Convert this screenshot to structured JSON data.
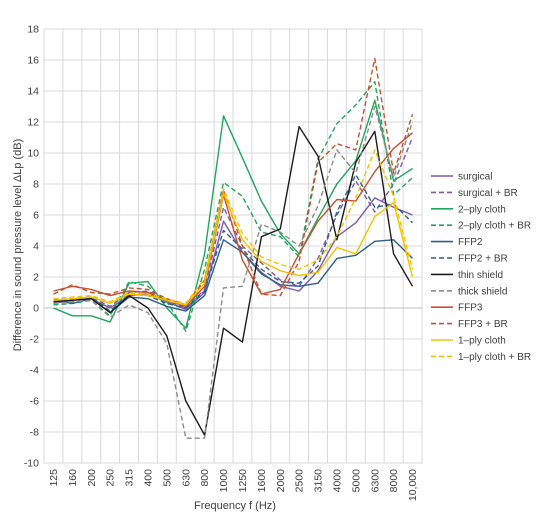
{
  "chart_data": {
    "type": "line",
    "title": "",
    "xlabel": "Frequency f (Hz)",
    "ylabel": "Difference in sound pressure level ΔLp (dB)",
    "ylim": [
      -10,
      18
    ],
    "yticks": [
      -10,
      -8,
      -6,
      -4,
      -2,
      0,
      2,
      4,
      6,
      8,
      10,
      12,
      14,
      16,
      18
    ],
    "grid": true,
    "legend_position": "right",
    "categories": [
      "125",
      "160",
      "200",
      "250",
      "315",
      "400",
      "500",
      "630",
      "800",
      "1000",
      "1250",
      "1600",
      "2000",
      "2500",
      "3150",
      "4000",
      "5000",
      "6300",
      "8000",
      "10,000"
    ],
    "series": [
      {
        "name": "surgical",
        "color": "#7c5aa6",
        "dash": "solid",
        "values": [
          0.3,
          0.5,
          0.6,
          0.0,
          0.8,
          0.9,
          0.4,
          -0.1,
          1.0,
          5.6,
          3.6,
          2.3,
          1.4,
          1.1,
          2.4,
          4.6,
          5.5,
          7.1,
          6.5,
          6.0
        ]
      },
      {
        "name": "surgical + BR",
        "color": "#7c5aa6",
        "dash": "dashed",
        "values": [
          0.4,
          0.6,
          0.7,
          0.1,
          1.0,
          1.1,
          0.5,
          0.0,
          1.2,
          6.5,
          4.0,
          2.9,
          1.8,
          1.4,
          3.2,
          6.0,
          8.2,
          6.2,
          8.0,
          11.0
        ]
      },
      {
        "name": "2–ply cloth",
        "color": "#22a65a",
        "dash": "solid",
        "values": [
          0.0,
          -0.5,
          -0.5,
          -0.9,
          1.6,
          1.7,
          0.0,
          -1.3,
          3.5,
          12.4,
          9.7,
          6.9,
          4.8,
          3.5,
          5.8,
          8.0,
          9.5,
          13.4,
          8.2,
          9.0
        ]
      },
      {
        "name": "2–ply cloth + BR",
        "color": "#22a65a",
        "dash": "dashed",
        "values": [
          0.2,
          0.3,
          0.5,
          -0.5,
          1.7,
          1.4,
          0.4,
          -1.5,
          2.5,
          8.1,
          7.2,
          4.9,
          4.6,
          3.3,
          9.6,
          11.9,
          13.1,
          14.6,
          7.3,
          8.4
        ]
      },
      {
        "name": "FFP2",
        "color": "#2e5f8a",
        "dash": "solid",
        "values": [
          0.5,
          0.3,
          0.6,
          -0.3,
          0.7,
          0.6,
          0.1,
          -0.2,
          0.8,
          4.4,
          3.6,
          2.2,
          1.5,
          1.4,
          1.6,
          3.2,
          3.4,
          4.3,
          4.4,
          3.2
        ]
      },
      {
        "name": "FFP2 + BR",
        "color": "#2e5f8a",
        "dash": "dashed",
        "values": [
          0.6,
          0.5,
          0.7,
          -0.2,
          0.9,
          0.8,
          0.3,
          0.0,
          1.1,
          5.0,
          3.8,
          2.5,
          1.7,
          1.6,
          2.7,
          6.2,
          8.6,
          6.5,
          6.7,
          5.5
        ]
      },
      {
        "name": "thin shield",
        "color": "#1c1c1c",
        "dash": "solid",
        "values": [
          0.4,
          0.5,
          0.6,
          -0.3,
          0.8,
          0.0,
          -1.8,
          -6.0,
          -8.2,
          -1.3,
          -2.2,
          4.6,
          5.1,
          11.7,
          9.8,
          4.4,
          9.4,
          11.4,
          3.5,
          1.4
        ]
      },
      {
        "name": "thick shield",
        "color": "#8c8c8c",
        "dash": "dashed",
        "values": [
          0.3,
          0.4,
          0.5,
          -0.6,
          0.2,
          -0.3,
          -2.3,
          -8.4,
          -8.4,
          1.3,
          1.4,
          5.4,
          4.9,
          4.0,
          6.6,
          10.2,
          8.7,
          13.0,
          8.4,
          12.0
        ]
      },
      {
        "name": "FFP3",
        "color": "#c8502f",
        "dash": "solid",
        "values": [
          1.1,
          1.4,
          1.2,
          0.8,
          1.1,
          1.0,
          0.5,
          0.1,
          1.4,
          7.3,
          3.1,
          0.9,
          1.2,
          3.5,
          5.6,
          7.0,
          6.9,
          8.8,
          10.3,
          11.3
        ]
      },
      {
        "name": "FFP3 + BR",
        "color": "#c8502f",
        "dash": "dashed",
        "values": [
          0.9,
          1.5,
          1.0,
          0.9,
          1.3,
          1.2,
          0.6,
          0.2,
          1.8,
          7.6,
          4.0,
          0.9,
          0.8,
          3.0,
          9.4,
          10.6,
          10.2,
          16.1,
          8.7,
          12.5
        ]
      },
      {
        "name": "1–ply cloth",
        "color": "#f2c200",
        "dash": "solid",
        "values": [
          0.5,
          0.6,
          0.7,
          0.3,
          0.9,
          0.8,
          0.5,
          0.2,
          1.6,
          7.4,
          4.4,
          3.0,
          2.4,
          2.1,
          2.3,
          3.9,
          3.5,
          5.9,
          6.8,
          2.0
        ]
      },
      {
        "name": "1–ply cloth + BR",
        "color": "#f2c200",
        "dash": "dashed",
        "values": [
          0.6,
          0.7,
          0.8,
          0.4,
          1.0,
          0.9,
          0.6,
          0.3,
          1.9,
          7.7,
          4.8,
          3.3,
          2.8,
          2.5,
          3.1,
          4.6,
          7.1,
          10.2,
          7.2,
          2.5
        ]
      }
    ]
  }
}
